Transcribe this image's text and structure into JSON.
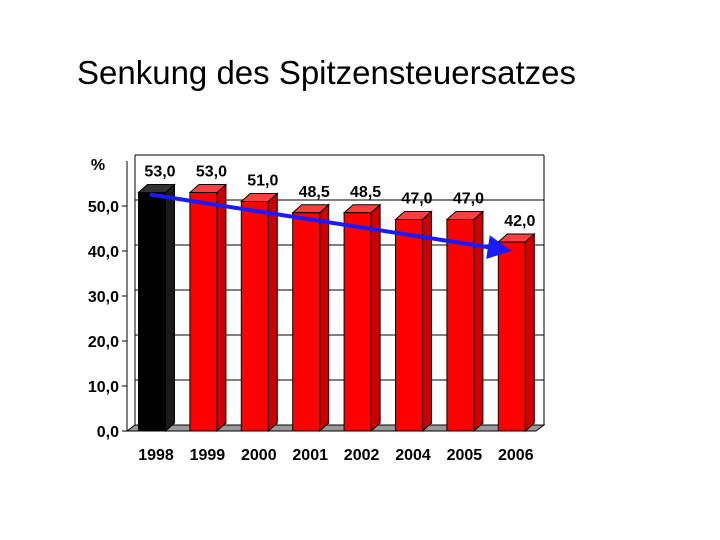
{
  "slide": {
    "title": "Senkung des Spitzensteuersatzes"
  },
  "chart_data": {
    "type": "bar",
    "title": "Senkung des Spitzensteuersatzes",
    "ylabel": "%",
    "xlabel": "",
    "categories": [
      "1998",
      "1999",
      "2000",
      "2001",
      "2002",
      "2004",
      "2005",
      "2006"
    ],
    "values": [
      53.0,
      53.0,
      51.0,
      48.5,
      48.5,
      47.0,
      47.0,
      42.0
    ],
    "value_labels": [
      "53,0",
      "53,0",
      "51,0",
      "48,5",
      "48,5",
      "47,0",
      "47,0",
      "42,0"
    ],
    "ylim": [
      0,
      60
    ],
    "yticks": [
      0,
      10,
      20,
      30,
      40,
      50
    ],
    "ytick_labels": [
      "0,0",
      "10,0",
      "20,0",
      "30,0",
      "40,0",
      "50,0"
    ],
    "grid": true,
    "three_d": true,
    "trend_arrow": {
      "from": [
        1998,
        53.0
      ],
      "to": [
        2006,
        42.0
      ],
      "color": "#1a1aff"
    },
    "colors": {
      "highlight_bar": "#000000",
      "bar": "#ff0000",
      "bar_side": "#cc0000",
      "bar_top": "#ff4040",
      "floor": "#999999"
    }
  }
}
